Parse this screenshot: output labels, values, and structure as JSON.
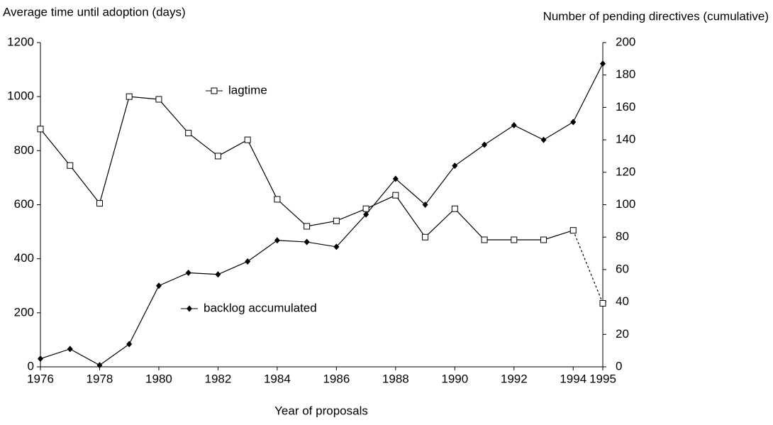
{
  "chart_data": {
    "type": "line",
    "ylabel": "Average time until adoption (days)",
    "y2label": "Number of pending directives (cumulative)",
    "xlabel": "Year of proposals",
    "x": [
      1976,
      1977,
      1978,
      1979,
      1980,
      1981,
      1982,
      1983,
      1984,
      1985,
      1986,
      1987,
      1988,
      1989,
      1990,
      1991,
      1992,
      1993,
      1994,
      1995
    ],
    "xlim": [
      1976,
      1995
    ],
    "xticks": [
      1976,
      1978,
      1980,
      1982,
      1984,
      1986,
      1988,
      1990,
      1992,
      1994,
      1995
    ],
    "ylim": [
      0,
      1200
    ],
    "yticks": [
      0,
      200,
      400,
      600,
      800,
      1000,
      1200
    ],
    "y2lim": [
      0,
      200
    ],
    "y2ticks": [
      0,
      20,
      40,
      60,
      80,
      100,
      120,
      140,
      160,
      180,
      200
    ],
    "series": [
      {
        "name": "lagtime",
        "color": "#000000",
        "marker": "open-square",
        "values": [
          880,
          745,
          605,
          1000,
          990,
          865,
          780,
          840,
          620,
          520,
          540,
          585,
          635,
          480,
          585,
          470,
          470,
          470,
          505,
          235
        ],
        "dashed_segments": [
          [
            1994,
            1995
          ]
        ]
      },
      {
        "name": "backlog accumulated",
        "color": "#000000",
        "marker": "filled-diamond",
        "axis": "y2",
        "values": [
          5,
          11,
          1,
          14,
          50,
          58,
          57,
          65,
          78,
          77,
          74,
          94,
          116,
          100,
          124,
          137,
          149,
          140,
          151,
          187
        ]
      }
    ]
  }
}
